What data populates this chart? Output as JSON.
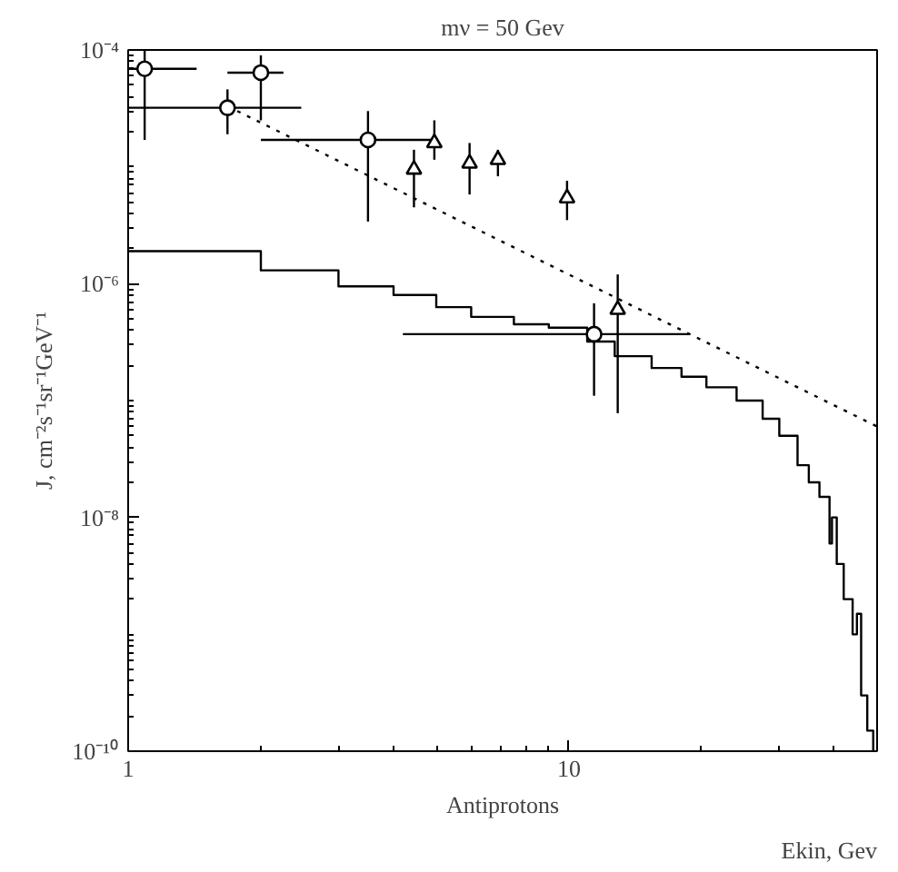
{
  "chart_data": {
    "type": "scatter",
    "title": "mν = 50 Gev",
    "xlabel": "Antiprotons",
    "ylabel": "J, cm⁻²s⁻¹sr⁻¹GeV⁻¹",
    "annotations": [
      "Ekin, Gev"
    ],
    "log": "xy",
    "grid": false,
    "xlim": [
      1,
      50
    ],
    "ylim": [
      1e-10,
      0.0001
    ],
    "xticks": [
      1,
      10
    ],
    "yticks": [
      {
        "value": 1e-10,
        "label": "10⁻¹⁰"
      },
      {
        "value": 1e-08,
        "label": "10⁻⁸"
      },
      {
        "value": 1e-06,
        "label": "10⁻⁶"
      },
      {
        "value": 0.0001,
        "label": "10⁻⁴"
      }
    ],
    "series": [
      {
        "type": "step",
        "color": "#000000",
        "x": [
          1,
          2,
          3,
          4,
          5,
          6,
          7.5,
          9,
          11,
          12.7,
          15.4,
          18,
          20.5,
          24,
          27.5,
          30,
          33,
          35,
          37,
          39,
          39.5,
          40.5,
          42,
          44,
          45,
          46,
          47.5,
          49
        ],
        "values": [
          1.9e-06,
          1.3e-06,
          9.5e-07,
          8e-07,
          6.3e-07,
          5.2e-07,
          4.5e-07,
          4.2e-07,
          3.2e-07,
          2.4e-07,
          1.9e-07,
          1.6e-07,
          1.3e-07,
          1e-07,
          7e-08,
          5e-08,
          2.8e-08,
          2e-08,
          1.5e-08,
          6e-09,
          1e-08,
          4e-09,
          2e-09,
          1e-09,
          1.5e-09,
          3e-10,
          1.5e-10,
          1e-10
        ]
      },
      {
        "type": "line",
        "color": "#000000",
        "line_style": "dotted",
        "x": [
          1.68,
          50
        ],
        "values": [
          3.3e-05,
          6e-08
        ]
      },
      {
        "color": "#000000",
        "marker": "circle",
        "x": [
          1.09,
          1.68,
          2,
          3.5,
          11.4
        ],
        "values": [
          6.9e-05,
          3.2e-05,
          6.4e-05,
          1.7e-05,
          3.7e-07
        ],
        "errors": [
          [
            1.7e-05,
            0.0001
          ],
          [
            1.9e-05,
            4.6e-05
          ],
          [
            2.5e-05,
            9e-05
          ],
          [
            3.4e-06,
            3e-05
          ],
          [
            1.1e-07,
            6.8e-07
          ]
        ],
        "xerrors": [
          [
            1,
            1.43
          ],
          [
            1,
            2.47
          ],
          [
            1.68,
            2.25
          ],
          [
            2,
            4.95
          ],
          [
            4.2,
            18.8
          ]
        ]
      },
      {
        "color": "#000000",
        "marker": "triangle",
        "x": [
          4.45,
          4.95,
          5.95,
          6.9,
          9.9,
          12.9
        ],
        "values": [
          9.5e-06,
          1.6e-05,
          1.07e-05,
          1.15e-05,
          5.4e-06,
          6e-07
        ],
        "errors": [
          [
            4.5e-06,
            1.4e-05
          ],
          [
            1.15e-05,
            2.5e-05
          ],
          [
            5.8e-06,
            1.6e-05
          ],
          [
            8.3e-06,
            1.4e-05
          ],
          [
            3.5e-06,
            7.6e-06
          ],
          [
            7.8e-08,
            1.2e-06
          ]
        ]
      }
    ]
  }
}
